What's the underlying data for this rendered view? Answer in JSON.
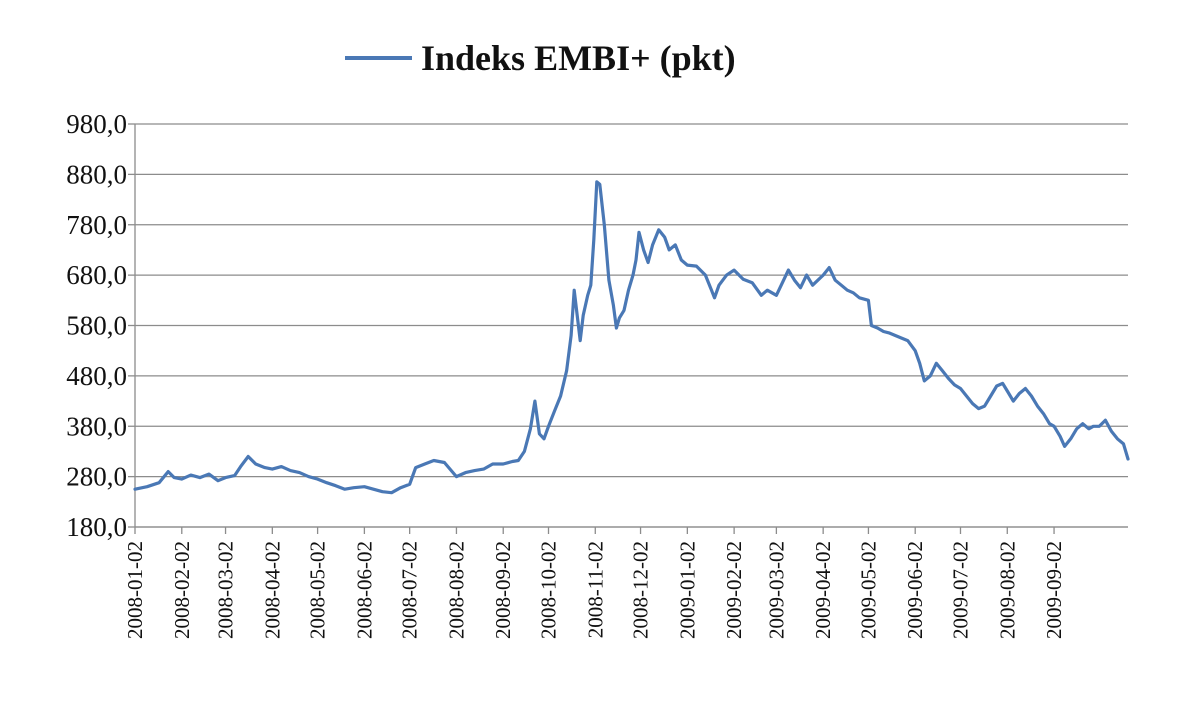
{
  "chart_data": {
    "type": "line",
    "title": "",
    "xlabel": "",
    "ylabel": "",
    "ylim": [
      180,
      980
    ],
    "y_ticks": [
      "180,0",
      "280,0",
      "380,0",
      "480,0",
      "580,0",
      "680,0",
      "780,0",
      "880,0",
      "980,0"
    ],
    "x_ticks": [
      "2008-01-02",
      "2008-02-02",
      "2008-03-02",
      "2008-04-02",
      "2008-05-02",
      "2008-06-02",
      "2008-07-02",
      "2008-08-02",
      "2008-09-02",
      "2008-10-02",
      "2008-11-02",
      "2008-12-02",
      "2009-01-02",
      "2009-02-02",
      "2009-03-02",
      "2009-04-02",
      "2009-05-02",
      "2009-06-02",
      "2009-07-02",
      "2009-08-02",
      "2009-09-02"
    ],
    "grid": true,
    "legend": "top",
    "line_color": "#4A78B5",
    "series": [
      {
        "name": "Indeks EMBI+ (pkt)",
        "points": [
          [
            "2008-01-02",
            255
          ],
          [
            "2008-01-10",
            260
          ],
          [
            "2008-01-18",
            268
          ],
          [
            "2008-01-24",
            290
          ],
          [
            "2008-01-28",
            278
          ],
          [
            "2008-02-02",
            275
          ],
          [
            "2008-02-08",
            283
          ],
          [
            "2008-02-14",
            278
          ],
          [
            "2008-02-20",
            285
          ],
          [
            "2008-02-26",
            272
          ],
          [
            "2008-03-02",
            278
          ],
          [
            "2008-03-08",
            282
          ],
          [
            "2008-03-12",
            300
          ],
          [
            "2008-03-17",
            320
          ],
          [
            "2008-03-22",
            305
          ],
          [
            "2008-03-28",
            298
          ],
          [
            "2008-04-02",
            295
          ],
          [
            "2008-04-08",
            300
          ],
          [
            "2008-04-14",
            292
          ],
          [
            "2008-04-20",
            288
          ],
          [
            "2008-04-26",
            280
          ],
          [
            "2008-05-02",
            275
          ],
          [
            "2008-05-08",
            268
          ],
          [
            "2008-05-14",
            262
          ],
          [
            "2008-05-20",
            255
          ],
          [
            "2008-05-26",
            258
          ],
          [
            "2008-06-02",
            260
          ],
          [
            "2008-06-08",
            255
          ],
          [
            "2008-06-14",
            250
          ],
          [
            "2008-06-20",
            248
          ],
          [
            "2008-06-26",
            258
          ],
          [
            "2008-07-02",
            265
          ],
          [
            "2008-07-06",
            298
          ],
          [
            "2008-07-12",
            305
          ],
          [
            "2008-07-18",
            312
          ],
          [
            "2008-07-25",
            308
          ],
          [
            "2008-08-02",
            280
          ],
          [
            "2008-08-08",
            288
          ],
          [
            "2008-08-14",
            292
          ],
          [
            "2008-08-20",
            295
          ],
          [
            "2008-08-26",
            305
          ],
          [
            "2008-09-02",
            305
          ],
          [
            "2008-09-08",
            310
          ],
          [
            "2008-09-12",
            312
          ],
          [
            "2008-09-16",
            330
          ],
          [
            "2008-09-20",
            375
          ],
          [
            "2008-09-23",
            430
          ],
          [
            "2008-09-26",
            365
          ],
          [
            "2008-09-29",
            355
          ],
          [
            "2008-10-02",
            380
          ],
          [
            "2008-10-06",
            410
          ],
          [
            "2008-10-10",
            440
          ],
          [
            "2008-10-14",
            490
          ],
          [
            "2008-10-17",
            560
          ],
          [
            "2008-10-19",
            650
          ],
          [
            "2008-10-21",
            600
          ],
          [
            "2008-10-23",
            550
          ],
          [
            "2008-10-25",
            600
          ],
          [
            "2008-10-28",
            640
          ],
          [
            "2008-10-30",
            660
          ],
          [
            "2008-11-01",
            750
          ],
          [
            "2008-11-03",
            865
          ],
          [
            "2008-11-05",
            860
          ],
          [
            "2008-11-08",
            780
          ],
          [
            "2008-11-11",
            670
          ],
          [
            "2008-11-14",
            620
          ],
          [
            "2008-11-16",
            575
          ],
          [
            "2008-11-18",
            595
          ],
          [
            "2008-11-21",
            610
          ],
          [
            "2008-11-24",
            650
          ],
          [
            "2008-11-27",
            680
          ],
          [
            "2008-11-29",
            710
          ],
          [
            "2008-12-01",
            765
          ],
          [
            "2008-12-04",
            730
          ],
          [
            "2008-12-07",
            705
          ],
          [
            "2008-12-10",
            740
          ],
          [
            "2008-12-14",
            770
          ],
          [
            "2008-12-18",
            755
          ],
          [
            "2008-12-21",
            730
          ],
          [
            "2008-12-25",
            740
          ],
          [
            "2008-12-29",
            710
          ],
          [
            "2009-01-02",
            700
          ],
          [
            "2009-01-08",
            698
          ],
          [
            "2009-01-14",
            680
          ],
          [
            "2009-01-18",
            650
          ],
          [
            "2009-01-20",
            635
          ],
          [
            "2009-01-23",
            660
          ],
          [
            "2009-01-28",
            680
          ],
          [
            "2009-02-02",
            690
          ],
          [
            "2009-02-08",
            672
          ],
          [
            "2009-02-14",
            665
          ],
          [
            "2009-02-20",
            640
          ],
          [
            "2009-02-24",
            650
          ],
          [
            "2009-03-02",
            640
          ],
          [
            "2009-03-06",
            665
          ],
          [
            "2009-03-10",
            690
          ],
          [
            "2009-03-14",
            670
          ],
          [
            "2009-03-18",
            655
          ],
          [
            "2009-03-22",
            680
          ],
          [
            "2009-03-26",
            660
          ],
          [
            "2009-04-02",
            680
          ],
          [
            "2009-04-06",
            695
          ],
          [
            "2009-04-10",
            670
          ],
          [
            "2009-04-14",
            660
          ],
          [
            "2009-04-18",
            650
          ],
          [
            "2009-04-22",
            645
          ],
          [
            "2009-04-26",
            635
          ],
          [
            "2009-05-02",
            630
          ],
          [
            "2009-05-04",
            580
          ],
          [
            "2009-05-08",
            575
          ],
          [
            "2009-05-12",
            568
          ],
          [
            "2009-05-16",
            565
          ],
          [
            "2009-05-20",
            560
          ],
          [
            "2009-05-24",
            555
          ],
          [
            "2009-05-28",
            550
          ],
          [
            "2009-06-02",
            530
          ],
          [
            "2009-06-05",
            505
          ],
          [
            "2009-06-08",
            470
          ],
          [
            "2009-06-12",
            480
          ],
          [
            "2009-06-16",
            505
          ],
          [
            "2009-06-20",
            490
          ],
          [
            "2009-06-24",
            475
          ],
          [
            "2009-06-28",
            462
          ],
          [
            "2009-07-02",
            455
          ],
          [
            "2009-07-06",
            440
          ],
          [
            "2009-07-10",
            425
          ],
          [
            "2009-07-14",
            415
          ],
          [
            "2009-07-18",
            420
          ],
          [
            "2009-07-22",
            440
          ],
          [
            "2009-07-26",
            460
          ],
          [
            "2009-07-30",
            465
          ],
          [
            "2009-08-02",
            450
          ],
          [
            "2009-08-06",
            430
          ],
          [
            "2009-08-10",
            445
          ],
          [
            "2009-08-14",
            455
          ],
          [
            "2009-08-18",
            440
          ],
          [
            "2009-08-22",
            420
          ],
          [
            "2009-08-26",
            405
          ],
          [
            "2009-08-30",
            385
          ],
          [
            "2009-09-02",
            380
          ],
          [
            "2009-09-06",
            360
          ],
          [
            "2009-09-09",
            340
          ],
          [
            "2009-09-13",
            355
          ],
          [
            "2009-09-17",
            375
          ],
          [
            "2009-09-21",
            385
          ],
          [
            "2009-09-25",
            375
          ],
          [
            "2009-09-28",
            380
          ],
          [
            "2009-10-02",
            380
          ],
          [
            "2009-10-06",
            392
          ],
          [
            "2009-10-10",
            370
          ],
          [
            "2009-10-14",
            355
          ],
          [
            "2009-10-18",
            345
          ],
          [
            "2009-10-21",
            315
          ]
        ]
      }
    ]
  }
}
